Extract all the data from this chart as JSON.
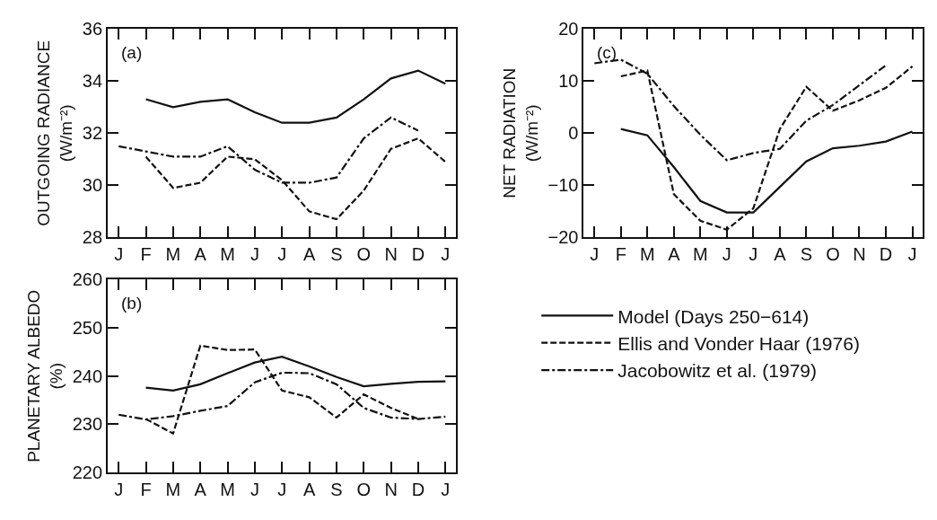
{
  "chart_data": [
    {
      "type": "line",
      "categories": [
        "J",
        "F",
        "M",
        "A",
        "M",
        "J",
        "J",
        "A",
        "S",
        "O",
        "N",
        "D",
        "J"
      ],
      "ylabel": "OUTGOING RADIANCE\n(W/m⁻²)",
      "ylim": [
        28,
        36
      ],
      "yticks": [
        28,
        30,
        32,
        34,
        36
      ],
      "grid": false,
      "legend": false,
      "annotations": [
        "(a)"
      ],
      "series": [
        {
          "color": "#111111",
          "line_style": "solid",
          "values": [
            null,
            33.3,
            33.0,
            33.2,
            33.3,
            32.8,
            32.4,
            32.4,
            32.6,
            33.3,
            34.1,
            34.4,
            33.9
          ]
        },
        {
          "color": "#111111",
          "line_style": "dashed",
          "values": [
            null,
            31.1,
            29.9,
            30.1,
            31.1,
            31.0,
            30.2,
            29.0,
            28.7,
            29.8,
            31.4,
            31.8,
            30.9
          ]
        },
        {
          "color": "#111111",
          "line_style": "dashdot",
          "values": [
            31.5,
            31.3,
            31.1,
            31.1,
            31.5,
            30.6,
            30.1,
            30.1,
            30.3,
            31.8,
            32.6,
            32.1,
            null
          ]
        }
      ]
    },
    {
      "type": "line",
      "categories": [
        "J",
        "F",
        "M",
        "A",
        "M",
        "J",
        "J",
        "A",
        "S",
        "O",
        "N",
        "D",
        "J"
      ],
      "ylabel": "PLANETARY ALBEDO\n(%)",
      "ylim": [
        220,
        260
      ],
      "yticks": [
        220,
        230,
        240,
        250,
        260
      ],
      "grid": false,
      "legend": false,
      "annotations": [
        "(b)"
      ],
      "series": [
        {
          "color": "#111111",
          "line_style": "solid",
          "values": [
            null,
            237.6,
            237.0,
            238.3,
            240.6,
            242.8,
            244.0,
            242.0,
            239.8,
            237.9,
            238.4,
            238.8,
            238.9
          ]
        },
        {
          "color": "#111111",
          "line_style": "dashed",
          "values": [
            null,
            231.1,
            228.1,
            246.3,
            245.4,
            245.5,
            237.0,
            235.6,
            231.4,
            236.2,
            233.4,
            231.1,
            null
          ]
        },
        {
          "color": "#111111",
          "line_style": "dashdot",
          "values": [
            232.0,
            231.0,
            231.7,
            232.8,
            233.8,
            238.7,
            240.7,
            240.6,
            238.3,
            233.4,
            231.4,
            231.1,
            231.6
          ]
        }
      ]
    },
    {
      "type": "line",
      "categories": [
        "J",
        "F",
        "M",
        "A",
        "M",
        "J",
        "J",
        "A",
        "S",
        "O",
        "N",
        "D",
        "J"
      ],
      "ylabel": "NET RADIATION\n(W/m⁻²)",
      "ylim": [
        -20,
        20
      ],
      "yticks": [
        -20,
        -10,
        0,
        10,
        20
      ],
      "grid": false,
      "legend": "bottom",
      "annotations": [
        "(c)"
      ],
      "series": [
        {
          "name": "Model (Days 250−614)",
          "color": "#111111",
          "line_style": "solid",
          "values": [
            null,
            0.8,
            -0.4,
            -6.5,
            -13.0,
            -15.2,
            -15.2,
            -10.3,
            -5.4,
            -2.9,
            -2.4,
            -1.6,
            0.3
          ]
        },
        {
          "name": "Ellis and Vonder Haar (1976)",
          "color": "#111111",
          "line_style": "dashed",
          "values": [
            null,
            10.9,
            12.0,
            -11.7,
            -16.8,
            -18.5,
            -14.4,
            0.8,
            8.9,
            4.3,
            6.3,
            8.7,
            12.8
          ]
        },
        {
          "name": "Jacobowitz et al. (1979)",
          "color": "#111111",
          "line_style": "dashdot",
          "values": [
            13.4,
            14.1,
            11.4,
            5.2,
            -0.3,
            -5.2,
            -3.8,
            -3.0,
            2.4,
            5.4,
            9.2,
            13.0,
            null
          ]
        }
      ]
    }
  ]
}
